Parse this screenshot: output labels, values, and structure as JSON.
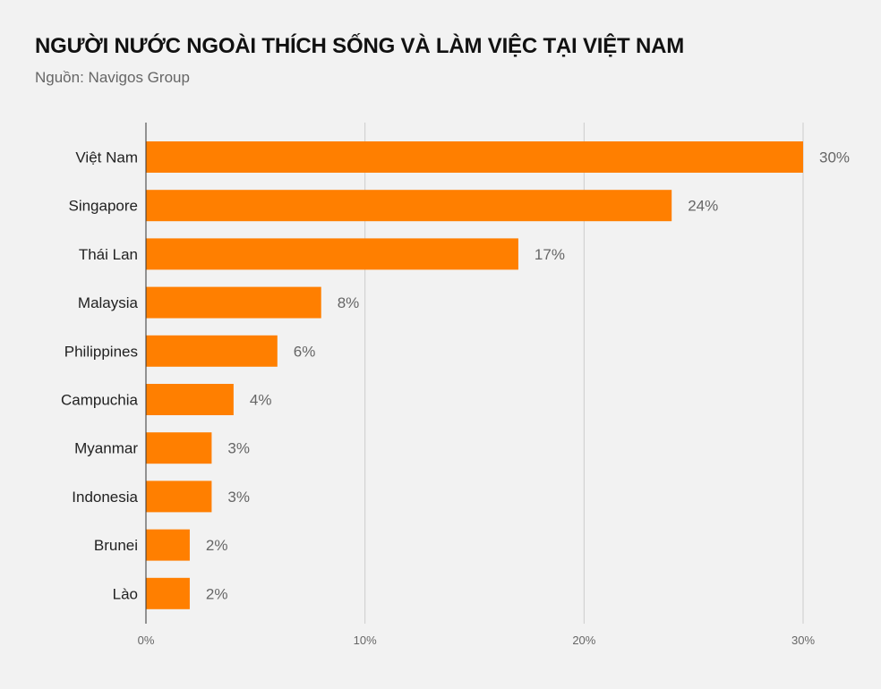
{
  "title": "NGƯỜI NƯỚC NGOÀI THÍCH SỐNG VÀ LÀM VIỆC TẠI VIỆT NAM",
  "subtitle": "Nguồn: Navigos Group",
  "chart_data": {
    "type": "bar",
    "orientation": "horizontal",
    "categories": [
      "Việt Nam",
      "Singapore",
      "Thái Lan",
      "Malaysia",
      "Philippines",
      "Campuchia",
      "Myanmar",
      "Indonesia",
      "Brunei",
      "Lào"
    ],
    "values": [
      30,
      24,
      17,
      8,
      6,
      4,
      3,
      3,
      2,
      2
    ],
    "value_labels": [
      "30%",
      "24%",
      "17%",
      "8%",
      "6%",
      "4%",
      "3%",
      "3%",
      "2%",
      "2%"
    ],
    "xlim": [
      0,
      30
    ],
    "xticks": [
      0,
      10,
      20,
      30
    ],
    "xtick_labels": [
      "0%",
      "10%",
      "20%",
      "30%"
    ],
    "grid": true,
    "colors": {
      "bar": "#ff7f00",
      "gridline": "#cccccc",
      "axis": "#333333"
    }
  }
}
